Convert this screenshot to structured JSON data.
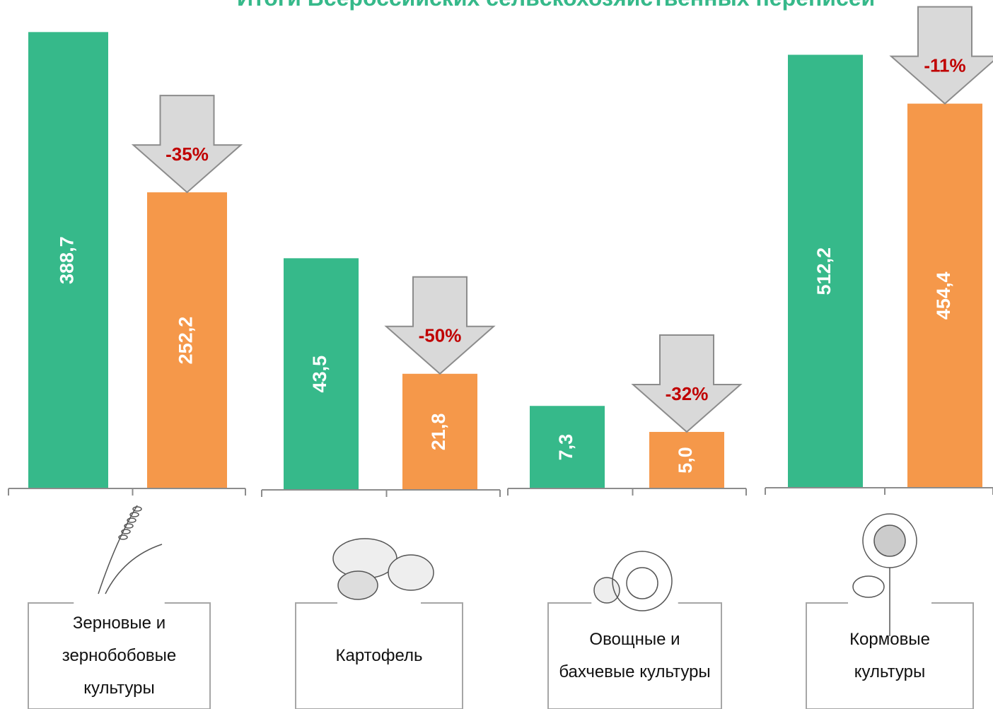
{
  "title": "Итоги Всероссийских сельскохозяйственных переписей",
  "chart_data": [
    {
      "type": "bar",
      "label": "Зерновые и зернобобовые культуры",
      "values": [
        388.7,
        252.2
      ],
      "value_labels": [
        "388,7",
        "252,2"
      ],
      "annotation": "-35%",
      "colors": [
        "#36b98a",
        "#f5984a"
      ],
      "ylim": [
        0,
        416
      ]
    },
    {
      "type": "bar",
      "label": "Картофель",
      "values": [
        43.5,
        21.8
      ],
      "value_labels": [
        "43,5",
        "21,8"
      ],
      "annotation": "-50%",
      "colors": [
        "#36b98a",
        "#f5984a"
      ],
      "ylim": [
        0,
        92
      ]
    },
    {
      "type": "bar",
      "label": "Овощные и бахчевые культуры",
      "values": [
        7.3,
        5.0
      ],
      "value_labels": [
        "7,3",
        "5,0"
      ],
      "annotation": "-32%",
      "colors": [
        "#36b98a",
        "#f5984a"
      ],
      "ylim": [
        0,
        43.2
      ]
    },
    {
      "type": "bar",
      "label": "Кормовые культуры",
      "values": [
        512.2,
        454.4
      ],
      "value_labels": [
        "512,2",
        "454,4"
      ],
      "annotation": "-11%",
      "colors": [
        "#36b98a",
        "#f5984a"
      ],
      "ylim": [
        0,
        577
      ]
    }
  ]
}
